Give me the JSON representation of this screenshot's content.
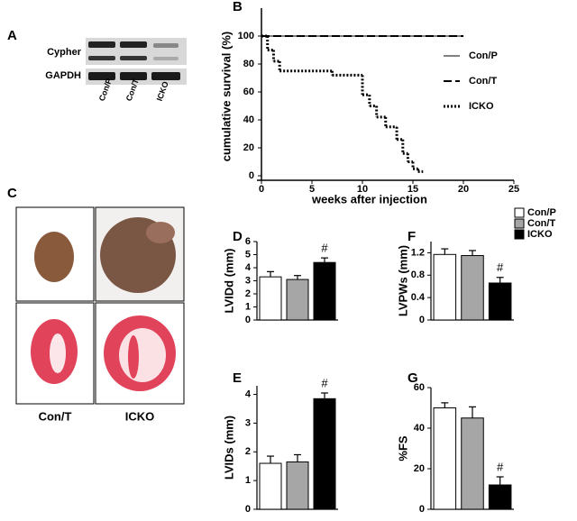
{
  "panel_a": {
    "label": "A",
    "rows": [
      "Cypher",
      "GAPDH"
    ],
    "lanes": [
      "Con/P",
      "Con/T",
      "ICKO"
    ]
  },
  "panel_c": {
    "label": "C",
    "captions": [
      "Con/T",
      "ICKO"
    ]
  },
  "bar_legend": [
    {
      "name": "Con/P",
      "color": "#ffffff"
    },
    {
      "name": "Con/T",
      "color": "#a6a6a6"
    },
    {
      "name": "ICKO",
      "color": "#000000"
    }
  ],
  "chart_data": [
    {
      "type": "line",
      "panel_label": "B",
      "step": true,
      "x_label": "weeks after injection",
      "y_label": "cumulative survival (%)",
      "xlim": [
        0,
        25
      ],
      "xticks": [
        0,
        5,
        10,
        15,
        20,
        25
      ],
      "ylim": [
        0,
        120
      ],
      "yticks": [
        0,
        20,
        40,
        60,
        80,
        100
      ],
      "series": [
        {
          "name": "Con/P",
          "color": "#000000",
          "style": "solid",
          "x": [
            0,
            20
          ],
          "values": [
            100,
            100
          ]
        },
        {
          "name": "Con/T",
          "color": "#000000",
          "style": "dashed",
          "x": [
            0,
            20
          ],
          "values": [
            100,
            100
          ]
        },
        {
          "name": "ICKO",
          "color": "#000000",
          "style": "dotted",
          "x": [
            0,
            0.6,
            1.2,
            1.8,
            7,
            10,
            10.7,
            11.4,
            12.3,
            13.4,
            14,
            14.5,
            15,
            15.5,
            16
          ],
          "values": [
            100,
            90,
            82,
            75,
            72,
            58,
            50,
            42,
            35,
            26,
            16,
            10,
            5,
            3,
            3
          ]
        }
      ]
    },
    {
      "type": "bar",
      "panel_label": "D",
      "y_label": "LVIDd (mm)",
      "ylim": [
        0,
        6
      ],
      "yticks": [
        0,
        1,
        2,
        3,
        4,
        5,
        6
      ],
      "values": [
        3.3,
        3.1,
        4.4
      ],
      "errors": [
        0.4,
        0.3,
        0.35
      ],
      "annotation": "#"
    },
    {
      "type": "bar",
      "panel_label": "F",
      "y_label": "LVPWs (mm)",
      "ylim": [
        0,
        1.4
      ],
      "yticks": [
        0,
        0.4,
        0.8,
        1.2
      ],
      "values": [
        1.17,
        1.15,
        0.66
      ],
      "errors": [
        0.1,
        0.09,
        0.1
      ],
      "annotation": "#"
    },
    {
      "type": "bar",
      "panel_label": "E",
      "y_label": "LVIDs (mm)",
      "ylim": [
        0,
        4.3
      ],
      "yticks": [
        0,
        1,
        2,
        3,
        4
      ],
      "values": [
        1.6,
        1.65,
        3.85
      ],
      "errors": [
        0.25,
        0.25,
        0.2
      ],
      "annotation": "#"
    },
    {
      "type": "bar",
      "panel_label": "G",
      "y_label": "%FS",
      "ylim": [
        0,
        60
      ],
      "yticks": [
        0,
        20,
        40,
        60
      ],
      "values": [
        50,
        45,
        12
      ],
      "errors": [
        2.5,
        5.5,
        4
      ],
      "annotation": "#"
    }
  ]
}
